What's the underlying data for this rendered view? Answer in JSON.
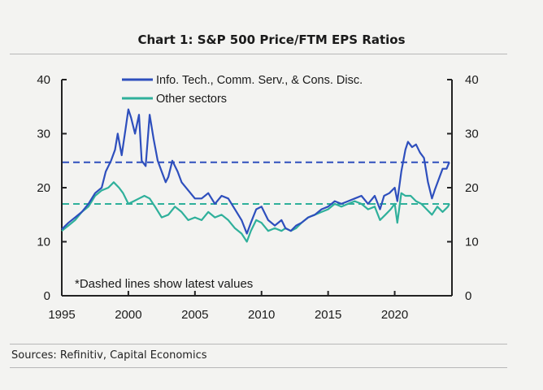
{
  "header": {
    "title": "Chart 1: S&P 500 Price/FTM EPS Ratios"
  },
  "footer": {
    "source": "Sources: Refinitiv, Capital Economics"
  },
  "chart_data": {
    "type": "line",
    "title": "Chart 1: S&P 500 Price/FTM EPS Ratios",
    "xlabel": "",
    "ylabel": "",
    "xlim": [
      1995,
      2024.3
    ],
    "ylim": [
      0,
      40
    ],
    "x_ticks": [
      1995,
      2000,
      2005,
      2010,
      2015,
      2020
    ],
    "y_ticks": [
      0,
      10,
      20,
      30,
      40
    ],
    "legend_position": "top-center",
    "annotation": "*Dashed lines show latest values",
    "series": [
      {
        "name": "Info. Tech., Comm. Serv., & Cons. Disc.",
        "color": "#2e4fbd",
        "latest_value": 24.7,
        "x": [
          1995.0,
          1995.5,
          1996.0,
          1996.5,
          1997.0,
          1997.5,
          1998.0,
          1998.3,
          1998.7,
          1999.0,
          1999.2,
          1999.5,
          1999.8,
          2000.0,
          2000.2,
          2000.5,
          2000.8,
          2001.0,
          2001.3,
          2001.6,
          2001.9,
          2002.2,
          2002.5,
          2002.8,
          2003.0,
          2003.3,
          2003.7,
          2004.0,
          2004.5,
          2005.0,
          2005.5,
          2006.0,
          2006.5,
          2007.0,
          2007.5,
          2008.0,
          2008.5,
          2008.9,
          2009.2,
          2009.6,
          2010.0,
          2010.5,
          2011.0,
          2011.5,
          2011.8,
          2012.2,
          2012.6,
          2013.0,
          2013.5,
          2014.0,
          2014.5,
          2015.0,
          2015.5,
          2016.0,
          2016.5,
          2017.0,
          2017.5,
          2018.0,
          2018.5,
          2018.9,
          2019.2,
          2019.6,
          2020.0,
          2020.2,
          2020.5,
          2020.8,
          2021.0,
          2021.3,
          2021.6,
          2021.9,
          2022.2,
          2022.5,
          2022.8,
          2023.0,
          2023.3,
          2023.6,
          2023.9,
          2024.1
        ],
        "values": [
          12.3,
          13.5,
          14.5,
          15.5,
          17.0,
          19.0,
          20.0,
          23.0,
          25.0,
          27.0,
          30.0,
          26.0,
          31.0,
          34.5,
          33.0,
          30.0,
          33.5,
          25.0,
          24.0,
          33.5,
          29.0,
          25.0,
          23.0,
          21.0,
          22.0,
          25.0,
          23.0,
          21.0,
          19.5,
          18.0,
          18.0,
          19.0,
          17.0,
          18.5,
          18.0,
          16.0,
          14.0,
          11.5,
          13.5,
          16.0,
          16.5,
          14.0,
          13.0,
          14.0,
          12.5,
          12.0,
          13.0,
          13.5,
          14.5,
          15.0,
          16.0,
          16.5,
          17.5,
          17.0,
          17.5,
          18.0,
          18.5,
          17.0,
          18.5,
          16.0,
          18.5,
          19.0,
          20.0,
          17.5,
          23.0,
          27.0,
          28.5,
          27.5,
          28.0,
          26.5,
          25.5,
          21.0,
          18.0,
          19.5,
          21.5,
          23.5,
          23.5,
          24.7
        ]
      },
      {
        "name": "Other sectors",
        "color": "#2fb09b",
        "latest_value": 17.0,
        "x": [
          1995.0,
          1995.5,
          1996.0,
          1996.5,
          1997.0,
          1997.5,
          1998.0,
          1998.5,
          1998.9,
          1999.3,
          1999.6,
          2000.0,
          2000.4,
          2000.8,
          2001.2,
          2001.6,
          2002.0,
          2002.5,
          2003.0,
          2003.5,
          2004.0,
          2004.5,
          2005.0,
          2005.5,
          2006.0,
          2006.5,
          2007.0,
          2007.5,
          2008.0,
          2008.5,
          2008.9,
          2009.2,
          2009.6,
          2010.0,
          2010.5,
          2011.0,
          2011.5,
          2011.8,
          2012.2,
          2012.6,
          2013.0,
          2013.5,
          2014.0,
          2014.5,
          2015.0,
          2015.5,
          2016.0,
          2016.5,
          2017.0,
          2017.5,
          2018.0,
          2018.5,
          2018.9,
          2019.3,
          2019.7,
          2020.0,
          2020.2,
          2020.5,
          2020.8,
          2021.2,
          2021.6,
          2022.0,
          2022.4,
          2022.8,
          2023.2,
          2023.6,
          2024.0,
          2024.1
        ],
        "values": [
          12.0,
          13.0,
          14.0,
          15.5,
          16.5,
          18.5,
          19.5,
          20.0,
          21.0,
          20.0,
          19.0,
          17.0,
          17.5,
          18.0,
          18.5,
          18.0,
          16.5,
          14.5,
          15.0,
          16.5,
          15.5,
          14.0,
          14.5,
          14.0,
          15.5,
          14.5,
          15.0,
          14.0,
          12.5,
          11.5,
          10.0,
          12.0,
          14.0,
          13.5,
          12.0,
          12.5,
          12.0,
          12.5,
          12.0,
          12.5,
          13.5,
          14.5,
          15.0,
          15.5,
          16.0,
          17.0,
          16.5,
          17.0,
          17.5,
          17.0,
          16.0,
          16.5,
          14.0,
          15.0,
          16.0,
          17.0,
          13.5,
          19.0,
          18.5,
          18.5,
          17.5,
          17.0,
          16.0,
          15.0,
          16.5,
          15.5,
          16.5,
          17.0
        ]
      }
    ]
  }
}
